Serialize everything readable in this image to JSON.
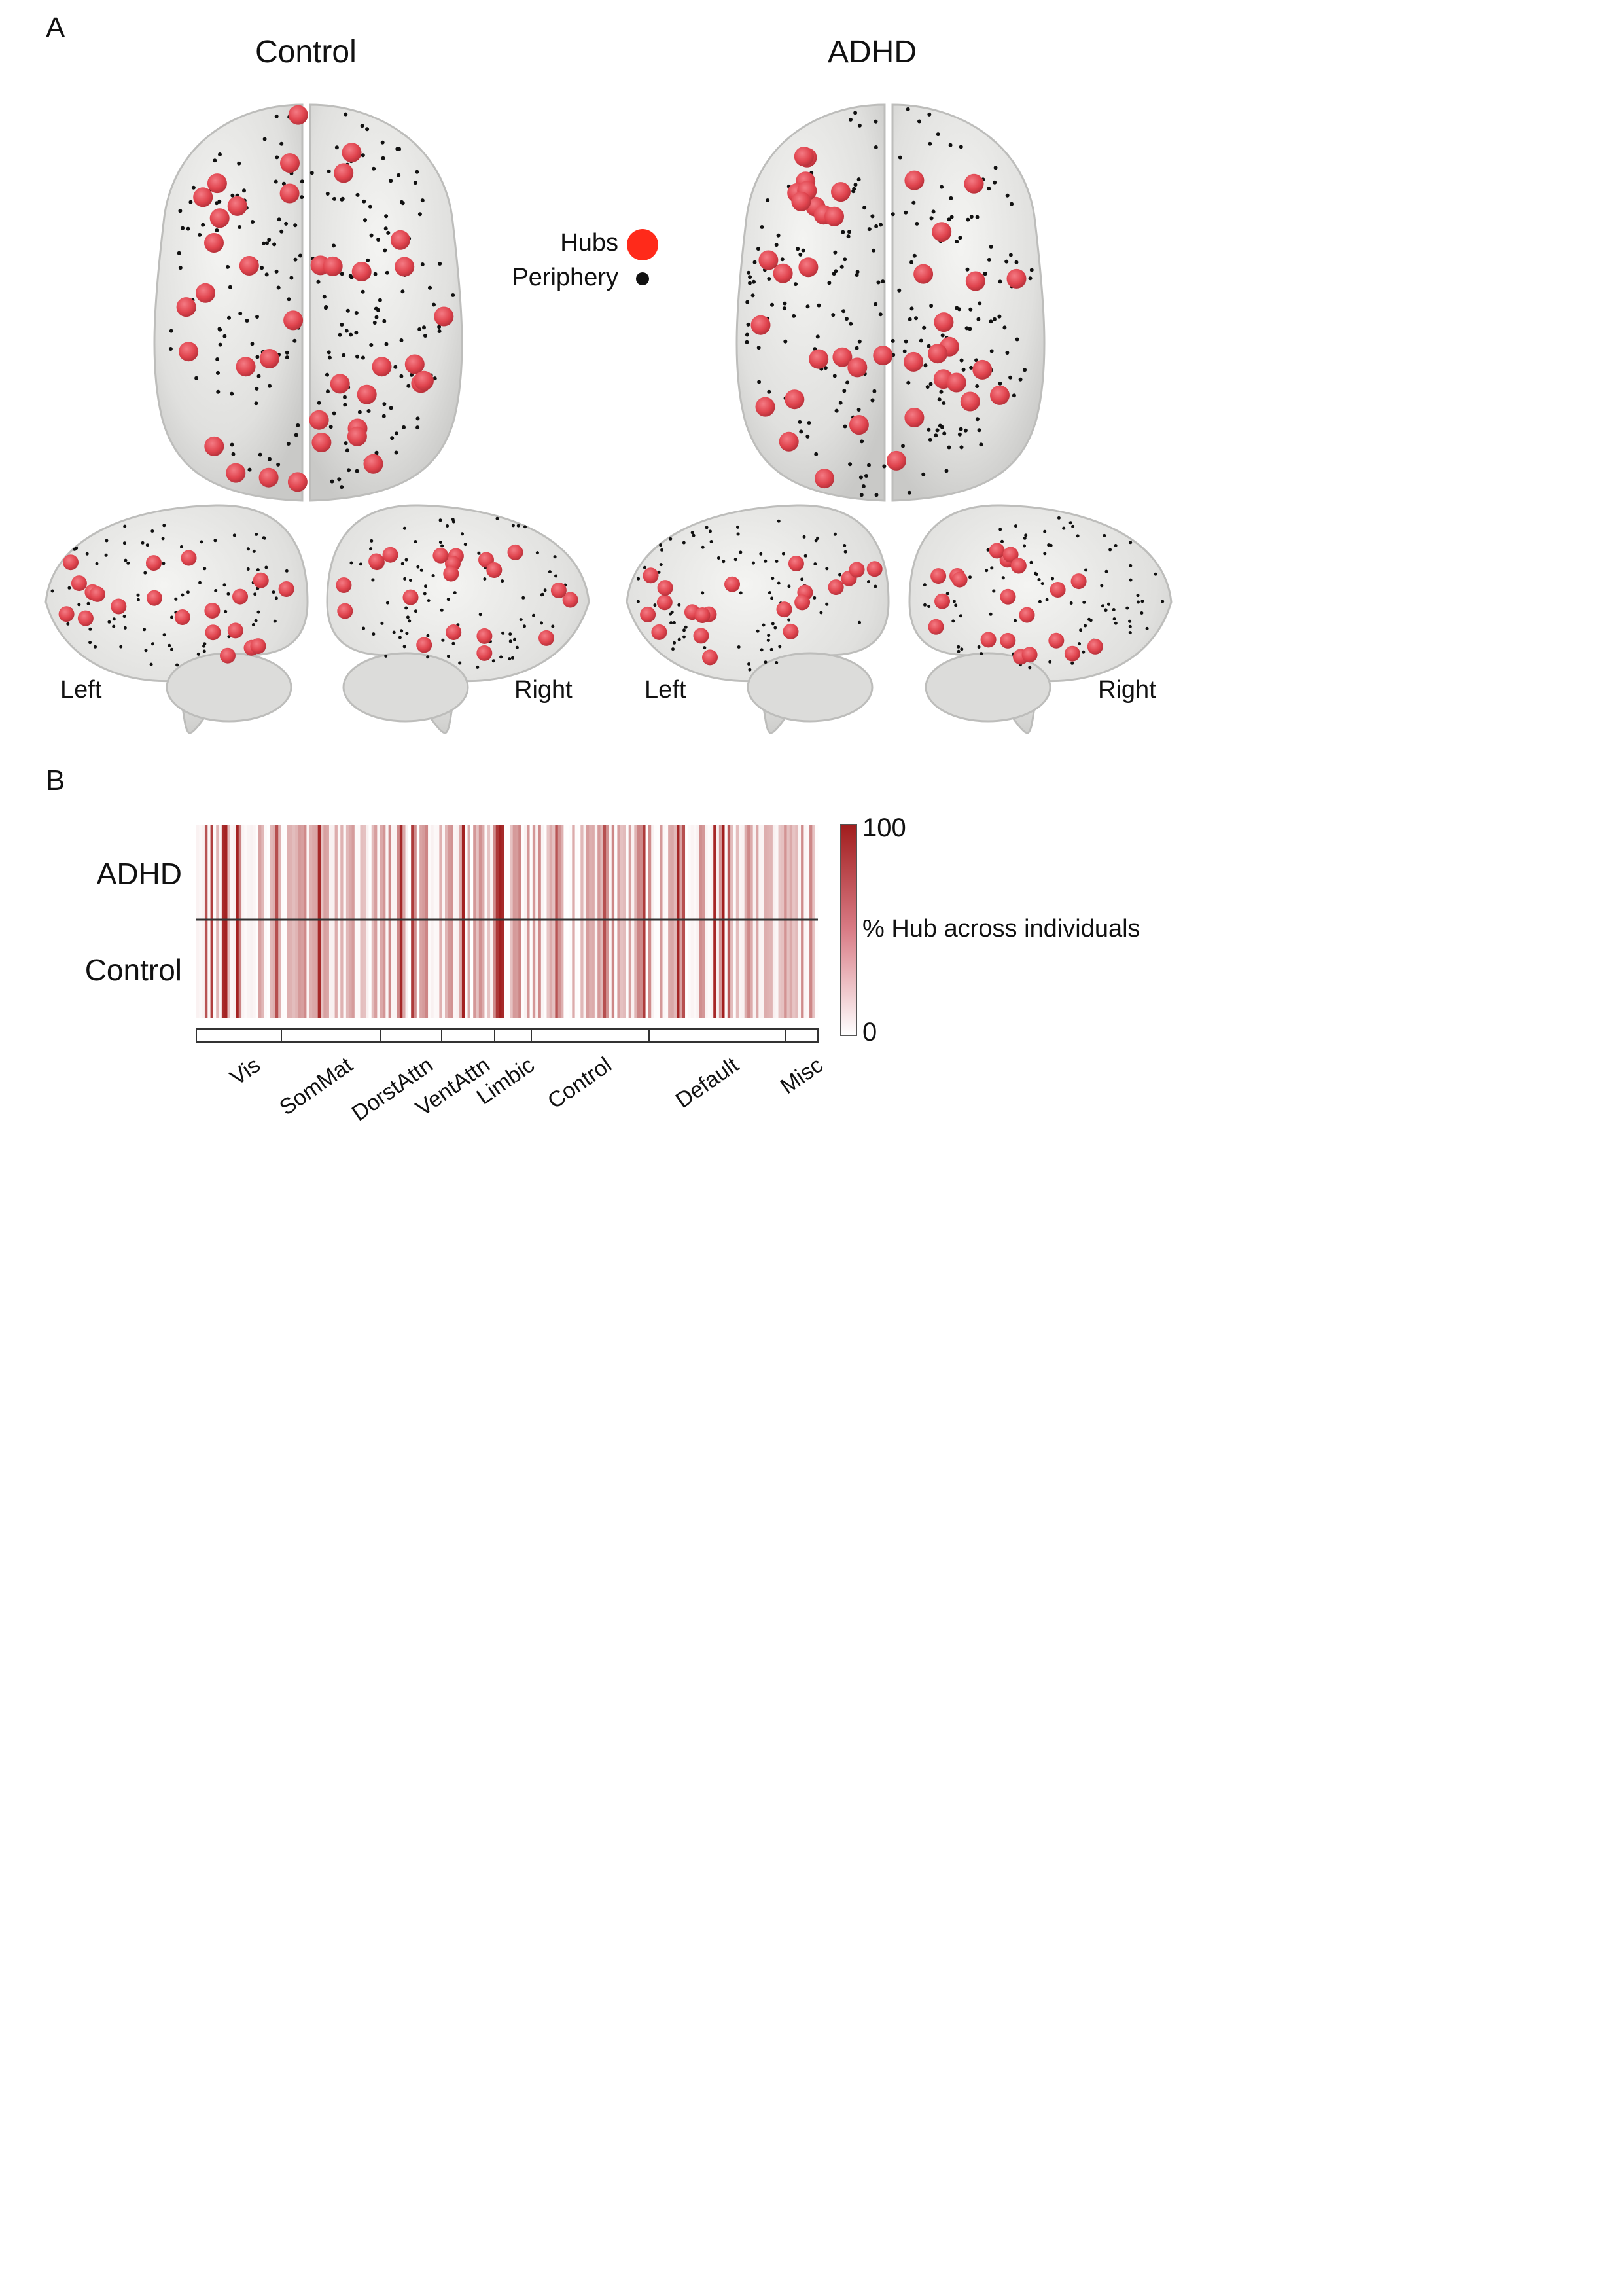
{
  "panel_a": {
    "letter": "A",
    "groups": [
      {
        "title": "Control",
        "left_label": "Left",
        "right_label": "Right"
      },
      {
        "title": "ADHD",
        "left_label": "Left",
        "right_label": "Right"
      }
    ],
    "legend": {
      "hubs": "Hubs",
      "periphery": "Periphery"
    },
    "colors": {
      "hub": "#e0444e",
      "periphery": "#111111",
      "brain": "#e4e4e2",
      "legend_hub": "#ff2a1a"
    }
  },
  "panel_b": {
    "letter": "B",
    "row_labels": {
      "top": "ADHD",
      "bottom": "Control"
    },
    "colorbar": {
      "max": "100",
      "min": "0",
      "label": "% Hub across individuals",
      "color_low": "#ffffff",
      "color_high": "#a11d1d"
    },
    "networks": [
      "Vis",
      "SomMat",
      "DorstAttn",
      "VentAttn",
      "Limbic",
      "Control",
      "Default",
      "Misc"
    ]
  }
}
